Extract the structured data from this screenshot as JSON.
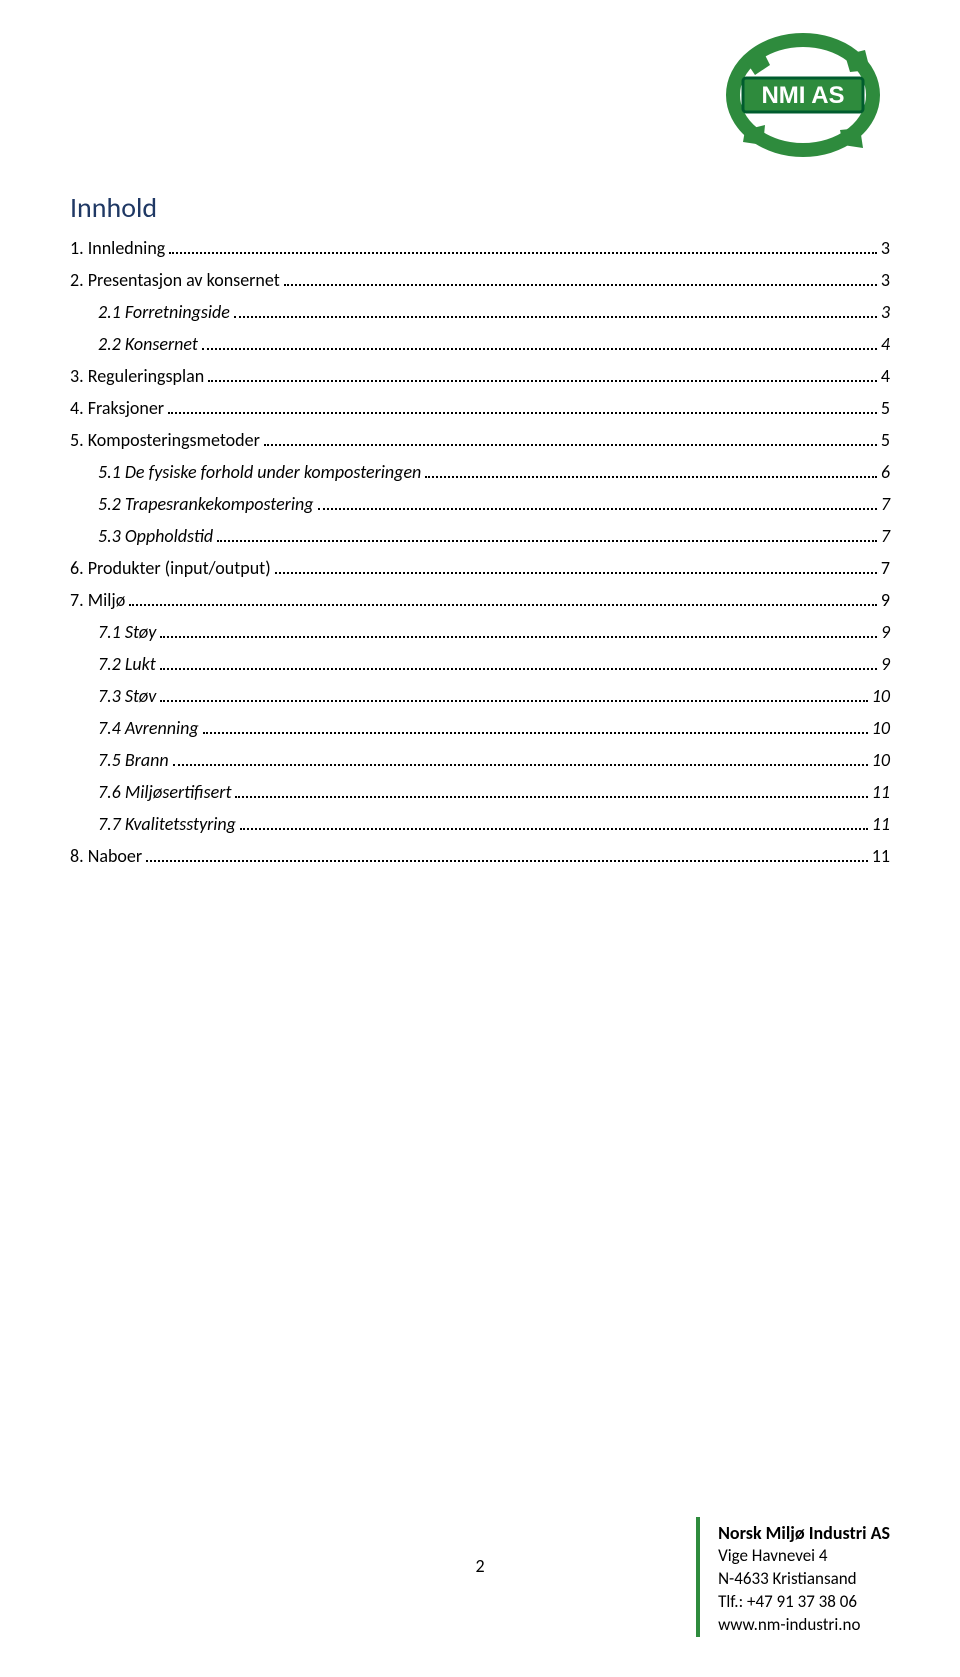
{
  "logo": {
    "text": "NMI AS",
    "bg_color": "#2e8b3d",
    "text_color": "#ffffff",
    "border_color": "#005c2e"
  },
  "heading": {
    "text": "Innhold",
    "color": "#1f3864",
    "fontsize": 28
  },
  "toc": [
    {
      "label": "1.   Innledning",
      "page": "3",
      "indent": 0,
      "italic": false
    },
    {
      "label": "2.   Presentasjon av konsernet",
      "page": "3",
      "indent": 0,
      "italic": false
    },
    {
      "label": "2.1 Forretningside",
      "page": "3",
      "indent": 1,
      "italic": true
    },
    {
      "label": "2.2 Konsernet",
      "page": "4",
      "indent": 1,
      "italic": true
    },
    {
      "label": "3.   Reguleringsplan",
      "page": "4",
      "indent": 0,
      "italic": false
    },
    {
      "label": "4.   Fraksjoner",
      "page": "5",
      "indent": 0,
      "italic": false
    },
    {
      "label": "5.   Komposteringsmetoder",
      "page": "5",
      "indent": 0,
      "italic": false
    },
    {
      "label": "5.1 De fysiske forhold under komposteringen",
      "page": "6",
      "indent": 1,
      "italic": true
    },
    {
      "label": "5.2 Trapesrankekompostering",
      "page": "7",
      "indent": 1,
      "italic": true
    },
    {
      "label": "5.3 Oppholdstid",
      "page": "7",
      "indent": 1,
      "italic": true
    },
    {
      "label": "6.   Produkter (input/output)",
      "page": "7",
      "indent": 0,
      "italic": false
    },
    {
      "label": "7.   Miljø",
      "page": "9",
      "indent": 0,
      "italic": false
    },
    {
      "label": "7.1 Støy",
      "page": "9",
      "indent": 1,
      "italic": true
    },
    {
      "label": "7.2 Lukt",
      "page": "9",
      "indent": 1,
      "italic": true
    },
    {
      "label": "7.3 Støv",
      "page": "10",
      "indent": 1,
      "italic": true
    },
    {
      "label": "7.4 Avrenning",
      "page": "10",
      "indent": 1,
      "italic": true
    },
    {
      "label": "7.5 Brann",
      "page": "10",
      "indent": 1,
      "italic": true
    },
    {
      "label": "7.6 Miljøsertifisert",
      "page": "11",
      "indent": 1,
      "italic": true
    },
    {
      "label": "7.7 Kvalitetsstyring",
      "page": "11",
      "indent": 1,
      "italic": true
    },
    {
      "label": "8.   Naboer",
      "page": "11",
      "indent": 0,
      "italic": false
    }
  ],
  "page_number": "2",
  "footer": {
    "company": "Norsk Miljø Industri AS",
    "address": "Vige Havnevei 4",
    "postal": "N-4633 Kristiansand",
    "phone": "Tlf.: +47  91 37 38 06",
    "web": "www.nm-industri.no",
    "line_color": "#2e8b3d"
  },
  "colors": {
    "background": "#ffffff",
    "text": "#000000"
  }
}
